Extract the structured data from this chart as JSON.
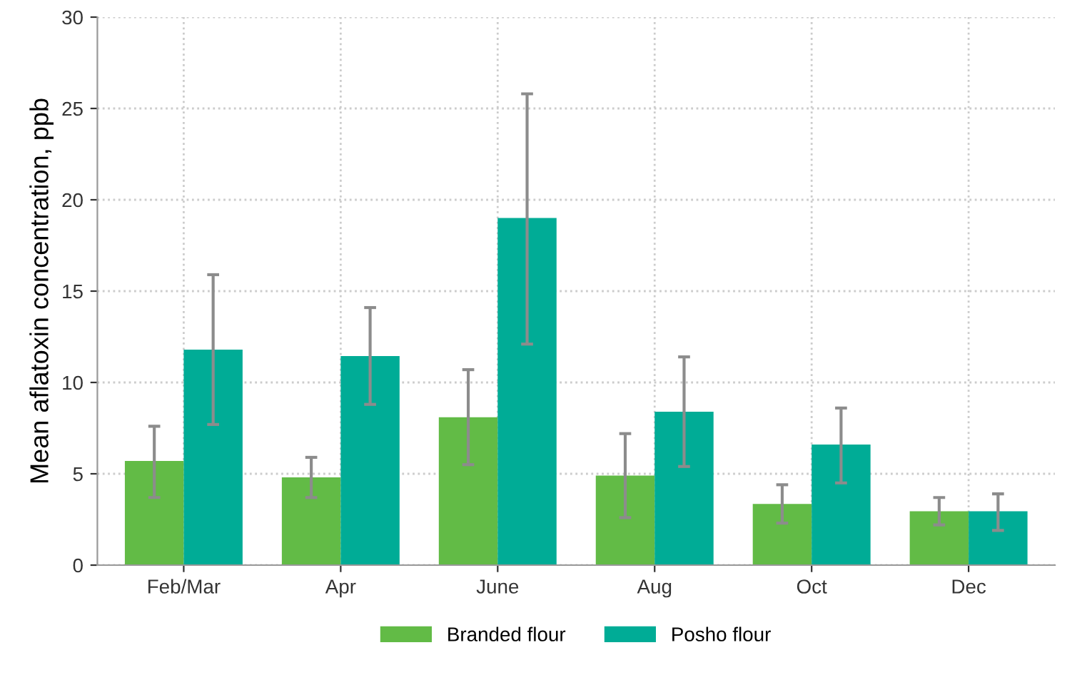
{
  "chart_data": {
    "type": "bar",
    "ylabel": "Mean aflatoxin concentration, ppb",
    "categories": [
      "Feb/Mar",
      "Apr",
      "June",
      "Aug",
      "Oct",
      "Dec"
    ],
    "series": [
      {
        "name": "Branded flour",
        "color": "#62bb46",
        "values": [
          5.7,
          4.8,
          8.1,
          4.9,
          3.35,
          2.95
        ],
        "errors": [
          [
            3.7,
            7.6
          ],
          [
            3.7,
            5.9
          ],
          [
            5.5,
            10.7
          ],
          [
            2.6,
            7.2
          ],
          [
            2.3,
            4.4
          ],
          [
            2.2,
            3.7
          ]
        ]
      },
      {
        "name": "Posho flour",
        "color": "#00ac96",
        "values": [
          11.8,
          11.45,
          19.0,
          8.4,
          6.6,
          2.95
        ],
        "errors": [
          [
            7.7,
            15.9
          ],
          [
            8.8,
            14.1
          ],
          [
            12.1,
            25.8
          ],
          [
            5.4,
            11.4
          ],
          [
            4.5,
            8.6
          ],
          [
            1.9,
            3.9
          ]
        ]
      }
    ],
    "ylim": [
      0,
      30
    ],
    "yticks": [
      0,
      5,
      10,
      15,
      20,
      25,
      30
    ],
    "grid": true,
    "legend": "bottom"
  }
}
